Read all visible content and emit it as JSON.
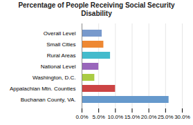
{
  "chart_data": {
    "type": "bar",
    "orientation": "horizontal",
    "title": "Percentage of People Receiving Social Security Disability",
    "categories": [
      "Buchanan County, VA.",
      "Appalachian Mtn. Counties",
      "Washington, D.C.",
      "National Level",
      "Rural Areas",
      "Small Cities",
      "Overall Level"
    ],
    "values": [
      26.0,
      10.0,
      3.8,
      5.0,
      8.5,
      6.5,
      6.0
    ],
    "colors": [
      "#6699CC",
      "#CC4444",
      "#AACC44",
      "#9966BB",
      "#44BBCC",
      "#EE8833",
      "#7799CC"
    ],
    "xlim": [
      0,
      30.0
    ],
    "xticks": [
      {
        "value": 0,
        "label": "0.0%"
      },
      {
        "value": 5,
        "label": "5.0%"
      },
      {
        "value": 10,
        "label": "10.0%"
      },
      {
        "value": 15,
        "label": "15.0%"
      },
      {
        "value": 20,
        "label": "20.0%"
      },
      {
        "value": 25,
        "label": "25.0%"
      },
      {
        "value": 30,
        "label": "30.0%"
      }
    ],
    "grid": true
  }
}
